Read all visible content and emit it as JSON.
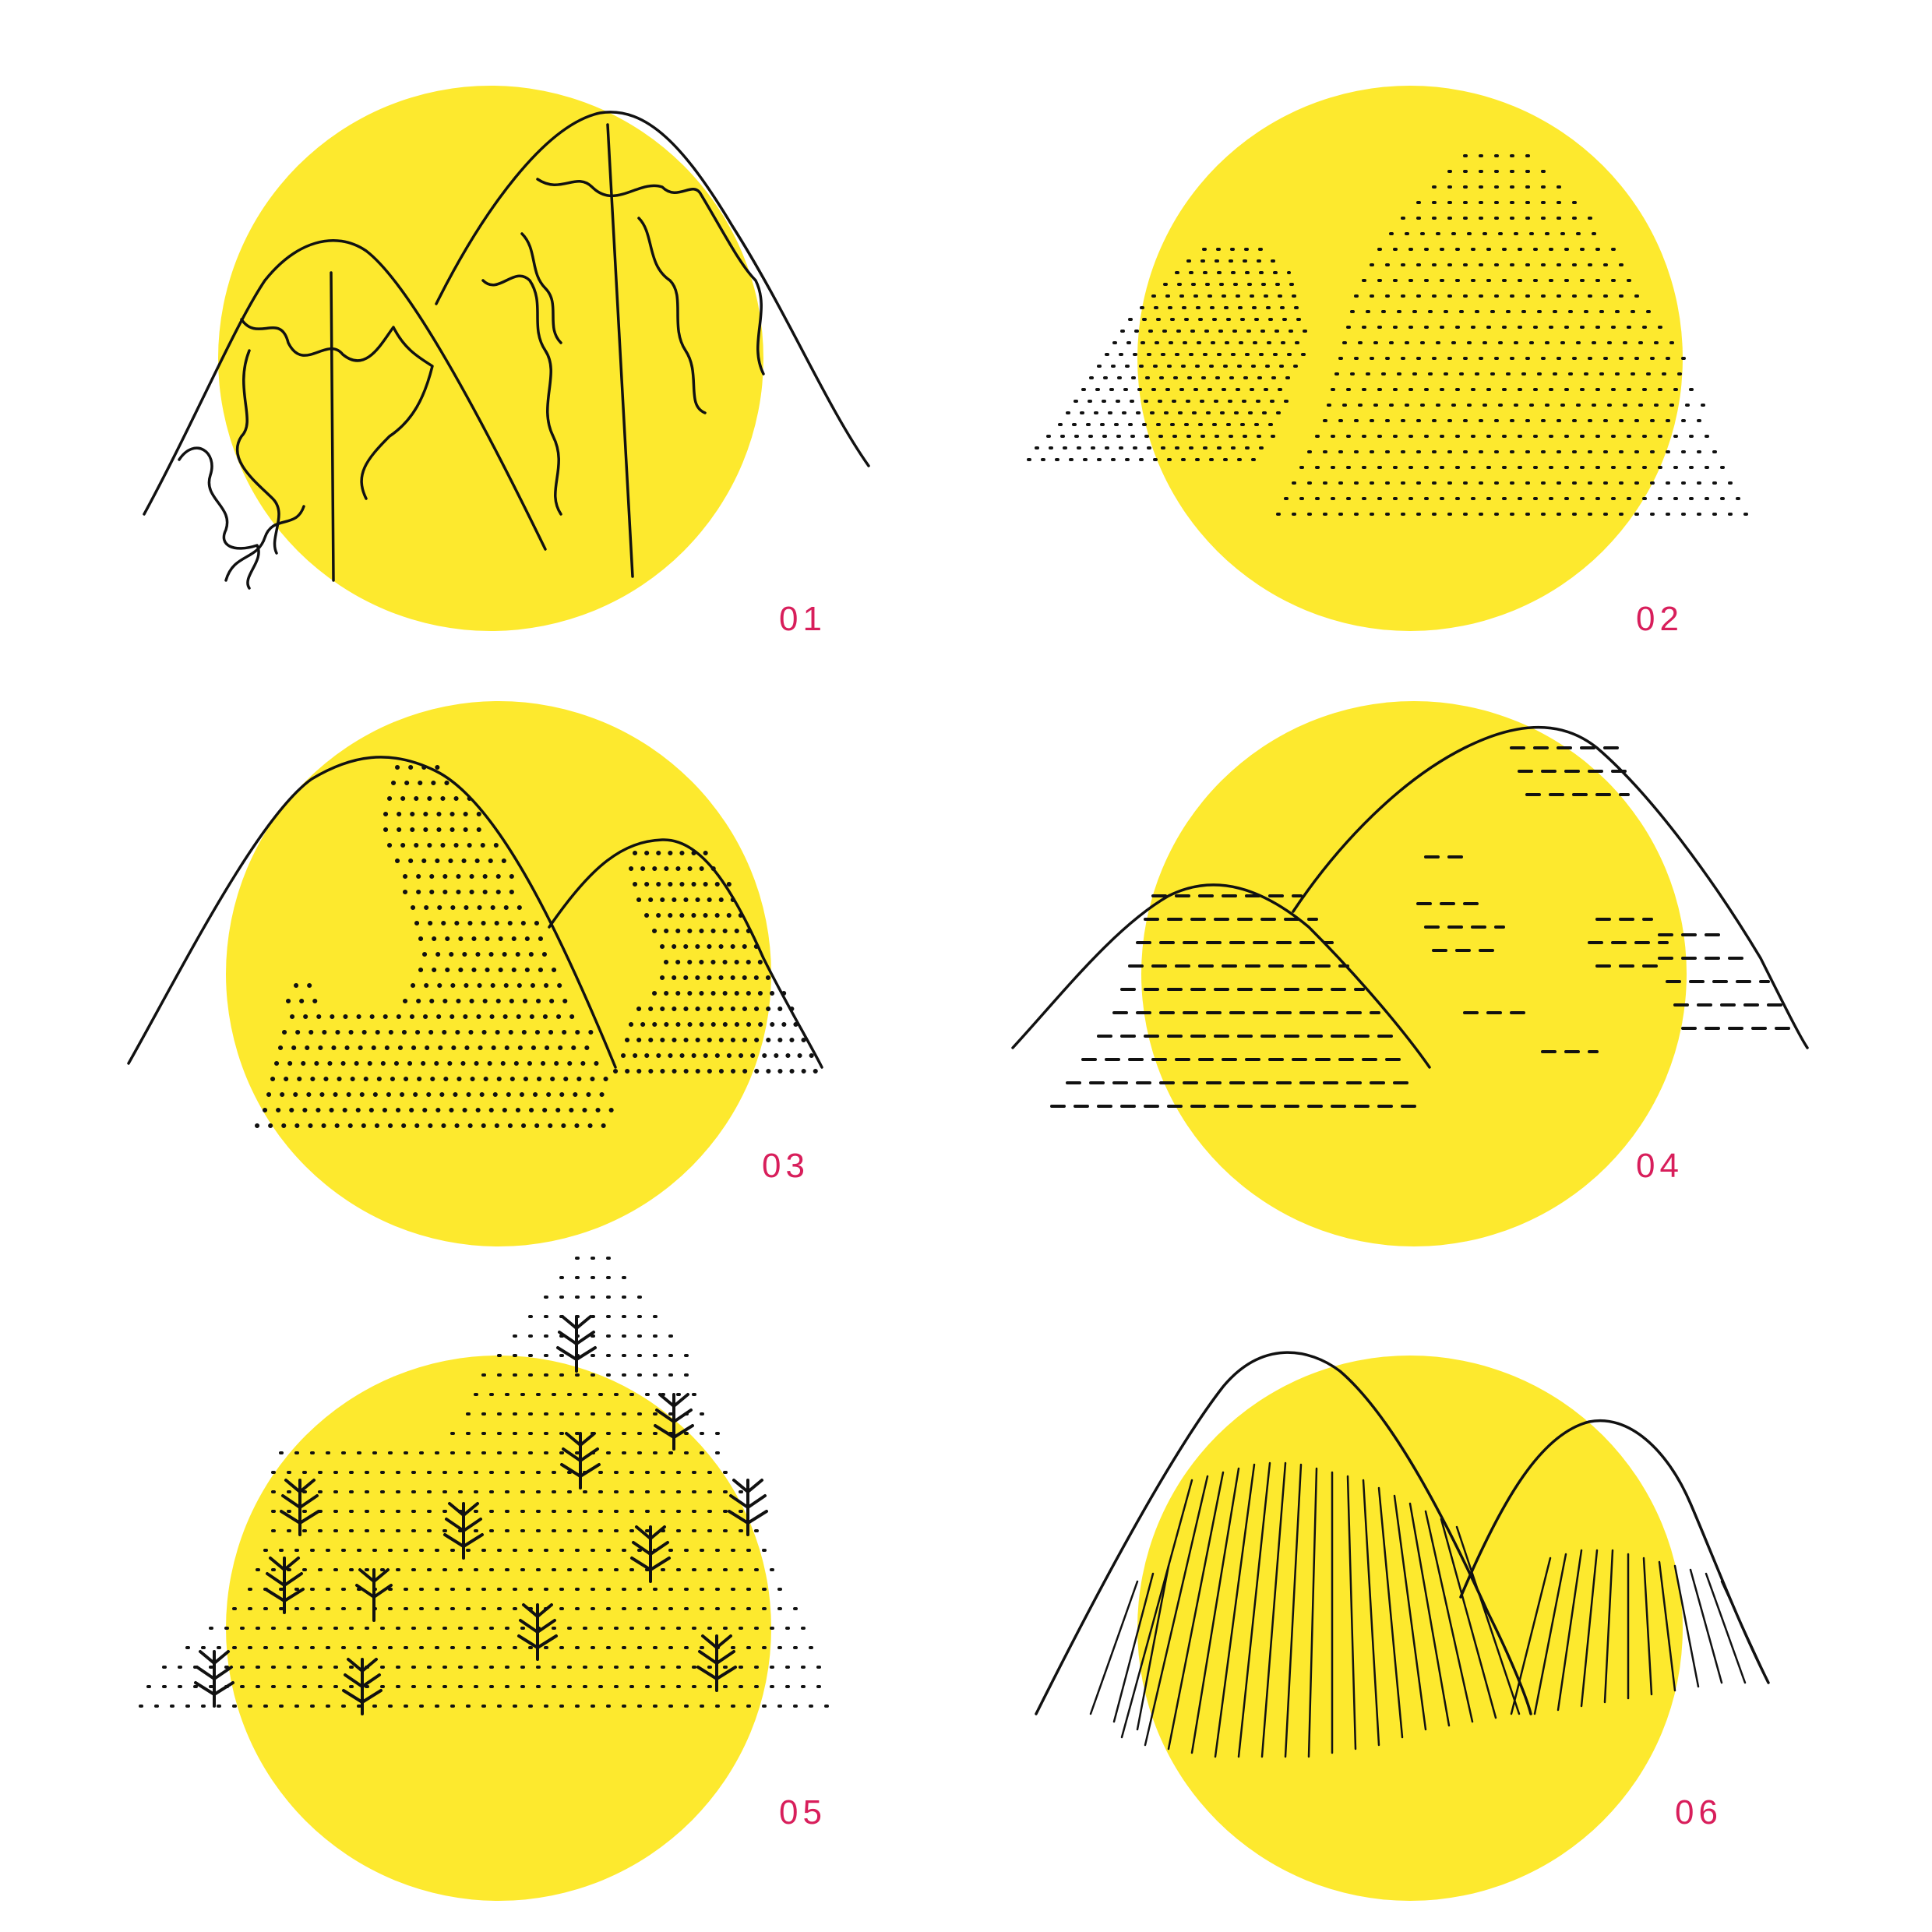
{
  "colors": {
    "background": "#ffffff",
    "sun": "#fde92e",
    "ink": "#111111",
    "label": "#d81e5b"
  },
  "panels": [
    {
      "id": "01",
      "label": "01",
      "texture": "snowcap-outline"
    },
    {
      "id": "02",
      "label": "02",
      "texture": "vertical-dashes"
    },
    {
      "id": "03",
      "label": "03",
      "texture": "stipple-dots"
    },
    {
      "id": "04",
      "label": "04",
      "texture": "scallop-arcs"
    },
    {
      "id": "05",
      "label": "05",
      "texture": "pine-trees-and-dashes"
    },
    {
      "id": "06",
      "label": "06",
      "texture": "radiating-hatch"
    }
  ]
}
